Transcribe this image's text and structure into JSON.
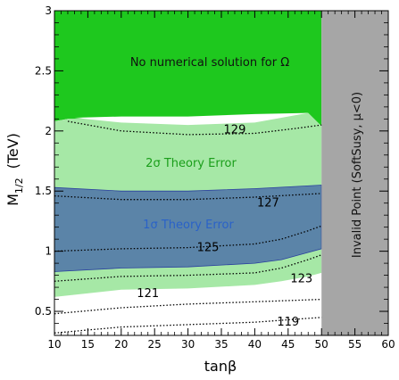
{
  "chart_data": {
    "type": "area",
    "xlabel": "tanβ",
    "ylabel_main": "M",
    "ylabel_sub": "1/2",
    "ylabel_unit": "(TeV)",
    "xlim": [
      10,
      60
    ],
    "ylim": [
      0.3,
      3.0
    ],
    "xticks": [
      "10",
      "15",
      "20",
      "25",
      "30",
      "35",
      "40",
      "45",
      "50",
      "55",
      "60"
    ],
    "yticks": [
      "0.5",
      "1",
      "1.5",
      "2",
      "2.5",
      "3"
    ],
    "regions": [
      {
        "name": "No numerical solution for Ω",
        "color": "#1ec81e"
      },
      {
        "name": "2σ Theory Error",
        "color": "#a6e8a6"
      },
      {
        "name": "1σ Theory Error",
        "color": "#5b84a8"
      },
      {
        "name": "Invalid Point (SoftSusy, μ<0)",
        "color": "#a6a6a6"
      }
    ],
    "region_text": {
      "no_solution": "No numerical solution for Ω",
      "two_sigma": "2σ Theory Error",
      "one_sigma": "1σ Theory Error",
      "invalid": "Invalid Point (SoftSusy, μ<0)"
    },
    "contours": [
      {
        "label": "119",
        "points": [
          [
            10,
            0.32
          ],
          [
            20,
            0.37
          ],
          [
            30,
            0.39
          ],
          [
            40,
            0.41
          ],
          [
            50,
            0.45
          ]
        ]
      },
      {
        "label": "121",
        "points": [
          [
            10,
            0.48
          ],
          [
            20,
            0.53
          ],
          [
            30,
            0.56
          ],
          [
            40,
            0.58
          ],
          [
            50,
            0.6
          ]
        ]
      },
      {
        "label": "123",
        "points": [
          [
            10,
            0.75
          ],
          [
            20,
            0.79
          ],
          [
            30,
            0.8
          ],
          [
            40,
            0.82
          ],
          [
            44,
            0.86
          ],
          [
            48,
            0.93
          ],
          [
            50,
            0.97
          ]
        ]
      },
      {
        "label": "125",
        "points": [
          [
            10,
            1.0
          ],
          [
            20,
            1.02
          ],
          [
            30,
            1.03
          ],
          [
            40,
            1.06
          ],
          [
            44,
            1.1
          ],
          [
            48,
            1.17
          ],
          [
            50,
            1.21
          ]
        ]
      },
      {
        "label": "127",
        "points": [
          [
            10,
            1.46
          ],
          [
            20,
            1.43
          ],
          [
            30,
            1.43
          ],
          [
            40,
            1.45
          ],
          [
            50,
            1.48
          ]
        ]
      },
      {
        "label": "129",
        "points": [
          [
            12,
            2.08
          ],
          [
            20,
            2.0
          ],
          [
            30,
            1.97
          ],
          [
            40,
            1.98
          ],
          [
            46,
            2.02
          ],
          [
            50,
            2.05
          ]
        ]
      }
    ],
    "contour_labels": [
      {
        "text": "119",
        "x": 45.0,
        "y": 0.38
      },
      {
        "text": "121",
        "x": 24.0,
        "y": 0.62
      },
      {
        "text": "123",
        "x": 47.0,
        "y": 0.74
      },
      {
        "text": "125",
        "x": 33.0,
        "y": 1.0
      },
      {
        "text": "127",
        "x": 42.0,
        "y": 1.37
      },
      {
        "text": "129",
        "x": 37.0,
        "y": 1.98
      }
    ],
    "bands": {
      "green_bottom": [
        [
          10,
          2.08
        ],
        [
          12,
          2.1
        ],
        [
          20,
          2.1
        ],
        [
          30,
          2.1
        ],
        [
          40,
          2.12
        ],
        [
          48,
          2.15
        ],
        [
          50,
          2.04
        ],
        [
          50,
          3.0
        ],
        [
          10,
          3.0
        ]
      ],
      "white_hole": [
        [
          13,
          2.11
        ],
        [
          20,
          2.07
        ],
        [
          30,
          2.05
        ],
        [
          40,
          2.07
        ],
        [
          48,
          2.15
        ],
        [
          40,
          2.14
        ],
        [
          30,
          2.12
        ],
        [
          20,
          2.12
        ]
      ],
      "two_sigma": [
        [
          10,
          0.62
        ],
        [
          20,
          0.68
        ],
        [
          30,
          0.69
        ],
        [
          40,
          0.72
        ],
        [
          44,
          0.75
        ],
        [
          48,
          0.79
        ],
        [
          50,
          0.82
        ],
        [
          50,
          2.04
        ],
        [
          48,
          2.15
        ],
        [
          40,
          2.12
        ],
        [
          30,
          2.1
        ],
        [
          20,
          2.1
        ],
        [
          12,
          2.1
        ],
        [
          10,
          2.08
        ]
      ],
      "one_sigma": [
        [
          10,
          0.83
        ],
        [
          20,
          0.86
        ],
        [
          30,
          0.87
        ],
        [
          40,
          0.9
        ],
        [
          44,
          0.93
        ],
        [
          48,
          0.99
        ],
        [
          50,
          1.02
        ],
        [
          50,
          1.55
        ],
        [
          40,
          1.52
        ],
        [
          30,
          1.5
        ],
        [
          20,
          1.5
        ],
        [
          10,
          1.53
        ]
      ]
    }
  }
}
